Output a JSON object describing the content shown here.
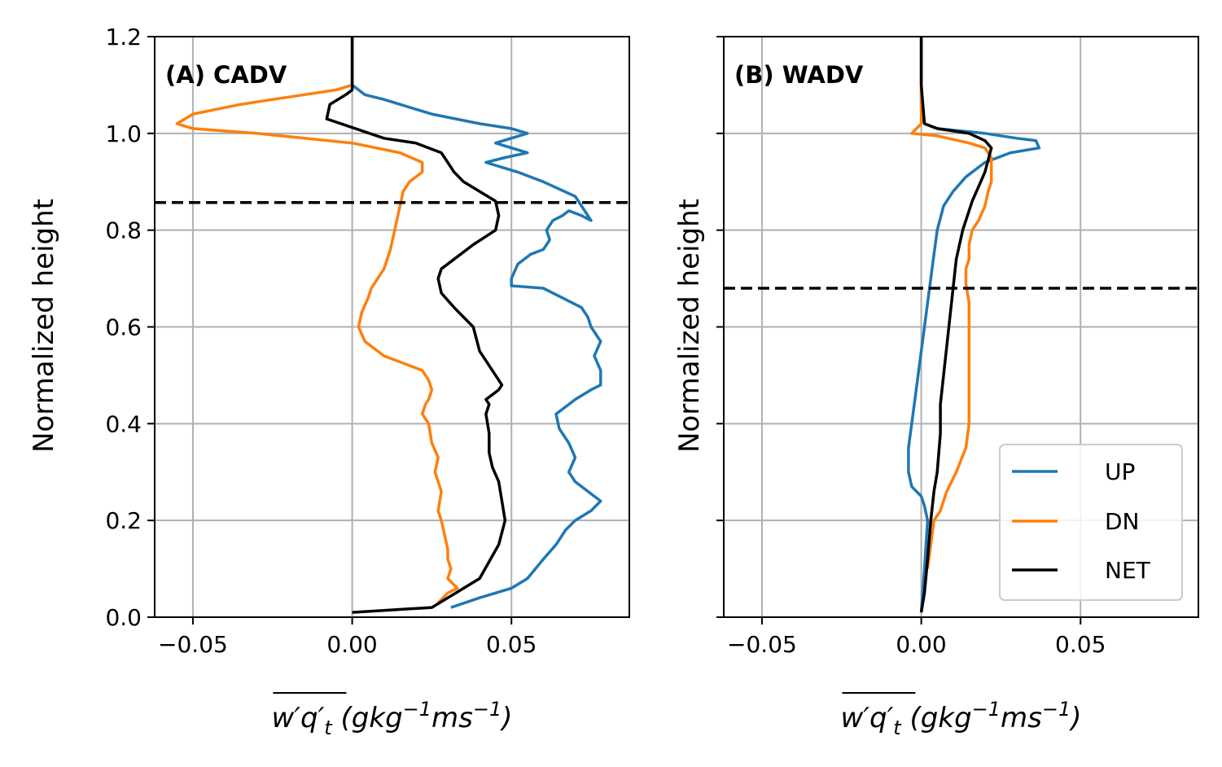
{
  "colors": {
    "UP": "#1f77b4",
    "DN": "#ff7f0e",
    "NET": "#000000",
    "grid": "#b0b0b0"
  },
  "legend": {
    "placement": "lower-right",
    "entries": [
      "UP",
      "DN",
      "NET"
    ]
  },
  "chart_data": [
    {
      "type": "line",
      "title": "(A) CADV",
      "xlabel": "w'q't (gkg-1ms-1)",
      "ylabel": "Normalized height",
      "xlim": [
        -0.062,
        0.087
      ],
      "ylim": [
        0.0,
        1.2
      ],
      "xticks": [
        "−0.05",
        "0.00",
        "0.05"
      ],
      "yticks": [
        "0.0",
        "0.2",
        "0.4",
        "0.6",
        "0.8",
        "1.0",
        "1.2"
      ],
      "grid": true,
      "hline": 0.857,
      "series": [
        {
          "name": "UP",
          "x": [
            0.031,
            0.04,
            0.05,
            0.055,
            0.06,
            0.064,
            0.067,
            0.07,
            0.075,
            0.078,
            0.074,
            0.07,
            0.068,
            0.07,
            0.068,
            0.065,
            0.064,
            0.068,
            0.07,
            0.075,
            0.078,
            0.078,
            0.076,
            0.078,
            0.075,
            0.074,
            0.072,
            0.066,
            0.06,
            0.05,
            0.05,
            0.052,
            0.056,
            0.06,
            0.062,
            0.061,
            0.063,
            0.066,
            0.068,
            0.072,
            0.075,
            0.07,
            0.06,
            0.052,
            0.042,
            0.048,
            0.055,
            0.045,
            0.055,
            0.05,
            0.04,
            0.025,
            0.01,
            0.004,
            0.0,
            0.0,
            0.0
          ],
          "y": [
            0.02,
            0.04,
            0.06,
            0.08,
            0.12,
            0.15,
            0.18,
            0.2,
            0.22,
            0.24,
            0.26,
            0.28,
            0.3,
            0.33,
            0.36,
            0.39,
            0.42,
            0.44,
            0.45,
            0.47,
            0.48,
            0.51,
            0.54,
            0.57,
            0.6,
            0.62,
            0.64,
            0.66,
            0.68,
            0.685,
            0.7,
            0.73,
            0.75,
            0.76,
            0.78,
            0.8,
            0.82,
            0.83,
            0.84,
            0.83,
            0.82,
            0.87,
            0.9,
            0.92,
            0.94,
            0.95,
            0.96,
            0.98,
            1.0,
            1.01,
            1.02,
            1.04,
            1.07,
            1.08,
            1.1,
            1.15,
            1.2
          ]
        },
        {
          "name": "DN",
          "x": [
            0.027,
            0.03,
            0.033,
            0.03,
            0.031,
            0.03,
            0.03,
            0.029,
            0.028,
            0.027,
            0.028,
            0.026,
            0.027,
            0.025,
            0.024,
            0.022,
            0.023,
            0.024,
            0.025,
            0.024,
            0.022,
            0.018,
            0.01,
            0.004,
            0.002,
            0.003,
            0.005,
            0.006,
            0.01,
            0.012,
            0.013,
            0.014,
            0.015,
            0.016,
            0.018,
            0.02,
            0.022,
            0.022,
            0.015,
            0.0,
            -0.03,
            -0.05,
            -0.055,
            -0.05,
            -0.035,
            -0.025,
            -0.015,
            -0.005,
            0.0,
            0.0,
            0.0
          ],
          "y": [
            0.03,
            0.05,
            0.06,
            0.08,
            0.1,
            0.12,
            0.14,
            0.17,
            0.2,
            0.22,
            0.26,
            0.3,
            0.33,
            0.36,
            0.4,
            0.42,
            0.44,
            0.45,
            0.47,
            0.49,
            0.51,
            0.52,
            0.54,
            0.57,
            0.6,
            0.63,
            0.66,
            0.68,
            0.72,
            0.76,
            0.79,
            0.82,
            0.85,
            0.88,
            0.9,
            0.91,
            0.92,
            0.94,
            0.96,
            0.98,
            1.0,
            1.01,
            1.02,
            1.04,
            1.06,
            1.07,
            1.08,
            1.09,
            1.1,
            1.15,
            1.2
          ]
        },
        {
          "name": "NET",
          "x": [
            0.0,
            0.025,
            0.03,
            0.04,
            0.046,
            0.048,
            0.047,
            0.046,
            0.044,
            0.043,
            0.043,
            0.042,
            0.043,
            0.042,
            0.044,
            0.046,
            0.047,
            0.045,
            0.04,
            0.038,
            0.035,
            0.032,
            0.028,
            0.027,
            0.028,
            0.032,
            0.038,
            0.045,
            0.046,
            0.045,
            0.04,
            0.035,
            0.032,
            0.03,
            0.028,
            0.02,
            0.01,
            -0.008,
            -0.007,
            -0.002,
            0.0,
            0.0,
            0.0
          ],
          "y": [
            0.01,
            0.02,
            0.04,
            0.08,
            0.15,
            0.2,
            0.24,
            0.28,
            0.31,
            0.34,
            0.38,
            0.42,
            0.44,
            0.45,
            0.46,
            0.47,
            0.48,
            0.5,
            0.55,
            0.6,
            0.62,
            0.64,
            0.67,
            0.7,
            0.72,
            0.74,
            0.77,
            0.8,
            0.83,
            0.86,
            0.88,
            0.9,
            0.92,
            0.94,
            0.96,
            0.98,
            0.99,
            1.03,
            1.06,
            1.08,
            1.09,
            1.15,
            1.2
          ]
        }
      ]
    },
    {
      "type": "line",
      "title": "(B) WADV",
      "xlabel": "w'q't (gkg-1ms-1)",
      "ylabel": "Normalized height",
      "xlim": [
        -0.062,
        0.087
      ],
      "ylim": [
        0.0,
        1.2
      ],
      "xticks": [
        "−0.05",
        "0.00",
        "0.05"
      ],
      "yticks": [],
      "grid": true,
      "hline": 0.68,
      "legend_entries": [
        "UP",
        "DN",
        "NET"
      ],
      "series": [
        {
          "name": "UP",
          "x": [
            0.0,
            0.001,
            0.002,
            0.001,
            0.0,
            -0.003,
            -0.004,
            -0.004,
            -0.003,
            -0.002,
            -0.001,
            0.0,
            0.001,
            0.002,
            0.003,
            0.004,
            0.005,
            0.007,
            0.01,
            0.014,
            0.02,
            0.028,
            0.037,
            0.036,
            0.03,
            0.02,
            0.005,
            0.001,
            0.0,
            0.0,
            0.0
          ],
          "y": [
            0.01,
            0.1,
            0.2,
            0.23,
            0.25,
            0.27,
            0.3,
            0.35,
            0.4,
            0.45,
            0.5,
            0.55,
            0.6,
            0.65,
            0.7,
            0.75,
            0.8,
            0.85,
            0.88,
            0.91,
            0.94,
            0.96,
            0.97,
            0.985,
            0.99,
            1.0,
            1.01,
            1.02,
            1.05,
            1.1,
            1.2
          ]
        },
        {
          "name": "DN",
          "x": [
            0.002,
            0.004,
            0.006,
            0.008,
            0.011,
            0.014,
            0.015,
            0.015,
            0.015,
            0.015,
            0.015,
            0.015,
            0.014,
            0.014,
            0.015,
            0.015,
            0.016,
            0.018,
            0.02,
            0.021,
            0.022,
            0.022,
            0.02,
            0.015,
            0.005,
            -0.003,
            0.0,
            0.0,
            0.0
          ],
          "y": [
            0.1,
            0.2,
            0.22,
            0.26,
            0.3,
            0.35,
            0.4,
            0.45,
            0.5,
            0.55,
            0.6,
            0.65,
            0.69,
            0.72,
            0.74,
            0.77,
            0.8,
            0.82,
            0.85,
            0.88,
            0.9,
            0.95,
            0.97,
            0.98,
            0.995,
            1.0,
            1.02,
            1.1,
            1.2
          ]
        },
        {
          "name": "NET",
          "x": [
            0.0,
            0.001,
            0.002,
            0.003,
            0.004,
            0.005,
            0.006,
            0.006,
            0.007,
            0.008,
            0.009,
            0.01,
            0.011,
            0.013,
            0.016,
            0.02,
            0.022,
            0.02,
            0.015,
            0.005,
            0.001,
            0.0,
            0.0
          ],
          "y": [
            0.01,
            0.05,
            0.12,
            0.2,
            0.26,
            0.3,
            0.38,
            0.44,
            0.5,
            0.56,
            0.62,
            0.68,
            0.74,
            0.8,
            0.86,
            0.92,
            0.97,
            0.985,
            1.0,
            1.01,
            1.02,
            1.1,
            1.2
          ]
        }
      ]
    }
  ]
}
